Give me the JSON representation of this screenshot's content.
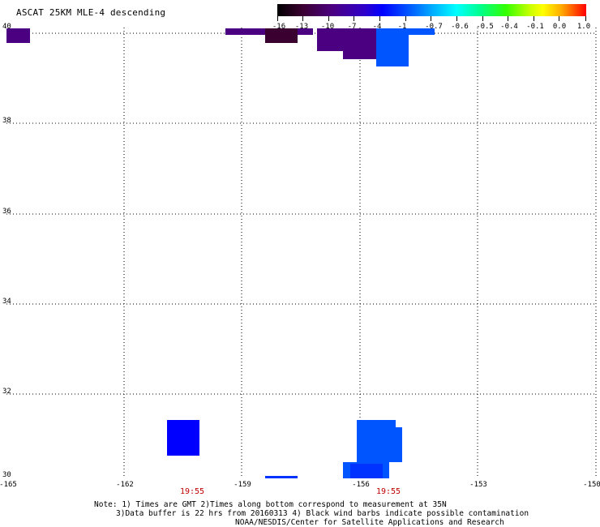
{
  "title": "ASCAT 25KM MLE-4 descending",
  "colorbar": {
    "labels": [
      "-16",
      "-13",
      "-10",
      "-7",
      "-4",
      "-1",
      "-0.7",
      "-0.6",
      "-0.5",
      "-0.4",
      "-0.1",
      "0.0",
      "1.0"
    ],
    "colors": {
      "min": "#000000",
      "mid_purple": "#4b0082",
      "blue": "#0000ff",
      "light_blue": "#0055ff",
      "cyan": "#00ffff",
      "green": "#33ff00",
      "yellow": "#ffff00",
      "red": "#ff0000"
    }
  },
  "y_axis": {
    "labels": [
      "40",
      "38",
      "36",
      "34",
      "32",
      "30"
    ],
    "range": [
      30,
      40
    ]
  },
  "x_axis": {
    "labels": [
      "-165",
      "-162",
      "-159",
      "-156",
      "-153",
      "-150"
    ],
    "range": [
      -165,
      -150
    ]
  },
  "time_labels": [
    "19:55",
    "19:55"
  ],
  "grid": "dotted",
  "notes": {
    "line1": "Note: 1) Times are GMT 2)Times along bottom correspond to measurement at 35N",
    "line2": "3)Data buffer is 22 hrs from 20160313 4) Black wind barbs indicate possible contamination",
    "line3": "NOAA/NESDIS/Center for Satellite Applications and Research"
  }
}
